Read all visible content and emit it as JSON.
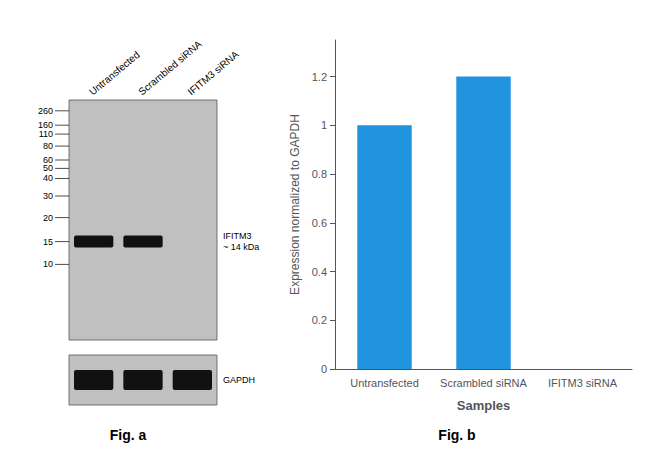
{
  "chart_data": [
    {
      "type": "blot",
      "title": "Fig. a",
      "lane_labels": [
        "Untransfected",
        "Scrambled siRNA",
        "IFITM3 siRNA"
      ],
      "marker_labels": [
        "260",
        "160",
        "110",
        "80",
        "60",
        "50",
        "40",
        "30",
        "20",
        "15",
        "10"
      ],
      "annotations": [
        "IFITM3\n~ 14 kDa",
        "GAPDH"
      ]
    },
    {
      "type": "bar",
      "title": "Fig. b",
      "categories": [
        "Untransfected",
        "Scrambled siRNA",
        "IFITM3 siRNA"
      ],
      "values": [
        1.0,
        1.2,
        0.0
      ],
      "color": "#2194e0",
      "xlabel": "Samples",
      "ylabel": "Expression normalized to GAPDH",
      "ylim": [
        0,
        1.35
      ],
      "yticks": [
        0,
        0.2,
        0.4,
        0.6,
        0.8,
        1,
        1.2
      ],
      "grid": false
    }
  ]
}
